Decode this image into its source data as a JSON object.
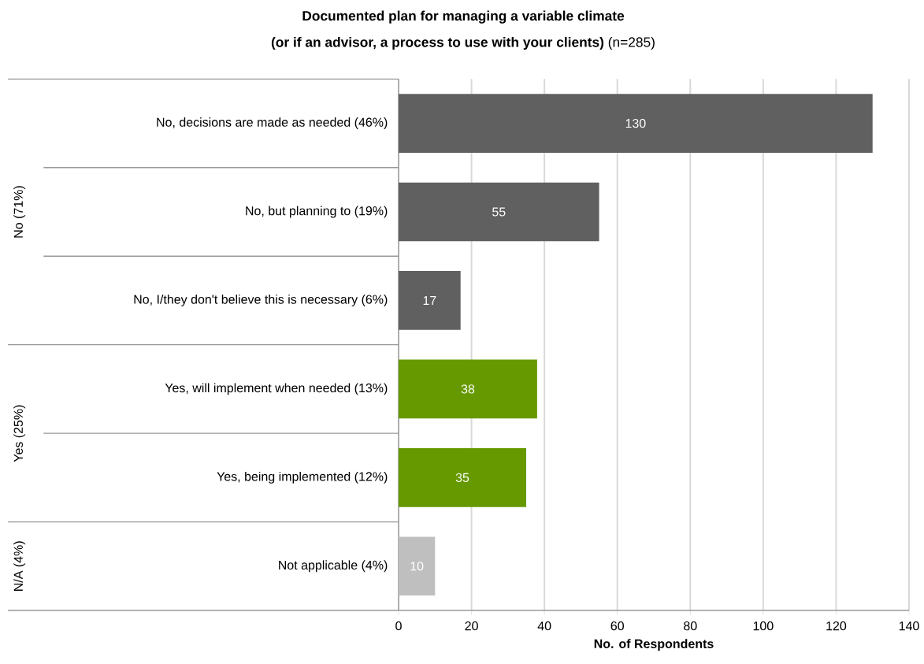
{
  "chart_data": {
    "type": "bar",
    "orientation": "horizontal",
    "title": "Documented plan for managing a variable climate",
    "subtitle": "**(or if an advisor, a process to use with your clients)** (n=285)",
    "xlabel": "No. of Respondents",
    "categories": [
      "No, decisions are made as needed (46%)",
      "No, but planning to (19%)",
      "No, I/they don't believe this is necessary (6%)",
      "Yes, will implement when needed (13%)",
      "Yes, being implemented (12%)",
      "Not applicable (4%)"
    ],
    "values": [
      130,
      55,
      17,
      38,
      35,
      10
    ],
    "value_labels": [
      "130",
      "55",
      "17",
      "38",
      "35",
      "10"
    ],
    "colors": [
      "#606060",
      "#606060",
      "#606060",
      "#669900",
      "#669900",
      "#bfbfbf"
    ],
    "annotations": [
      "No (71%)",
      "Yes (25%)",
      "N/A (4%)"
    ],
    "xlim": [
      0,
      140
    ],
    "xticks": [
      0,
      20,
      40,
      60,
      80,
      100,
      120,
      140
    ],
    "grid": "x"
  }
}
